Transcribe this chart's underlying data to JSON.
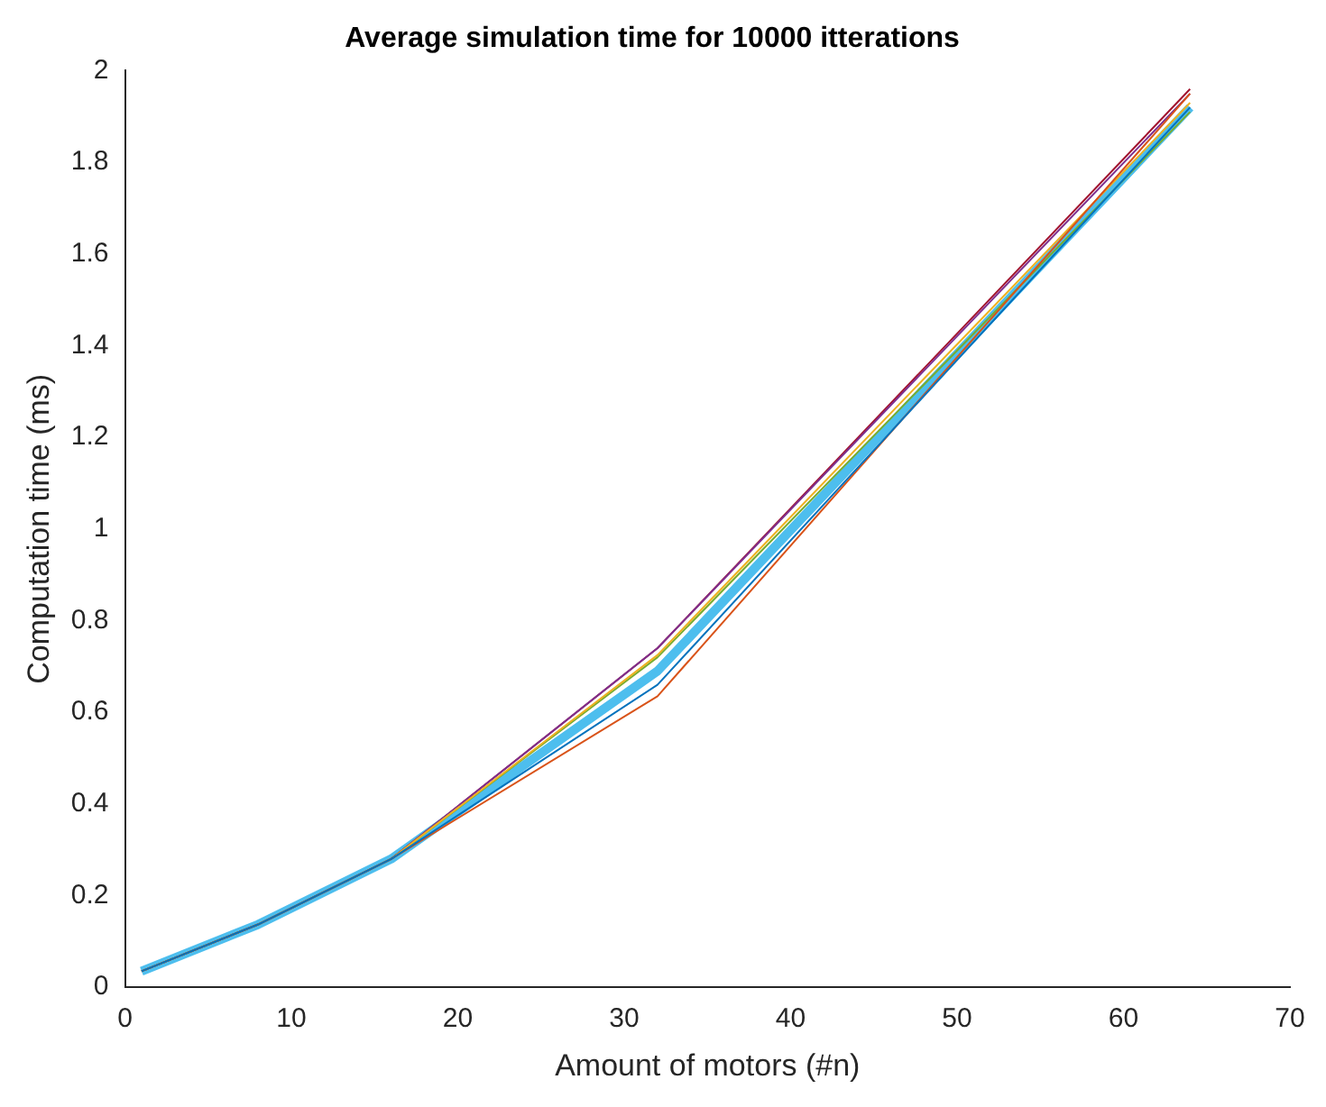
{
  "chart_data": {
    "type": "line",
    "title": "Average simulation time for 10000 itterations",
    "xlabel": "Amount of motors (#n)",
    "ylabel": "Computation time (ms)",
    "x": [
      1,
      8,
      16,
      32,
      64
    ],
    "series": [
      {
        "color": "#0072bd",
        "values": [
          0.035,
          0.137,
          0.28,
          0.66,
          1.92
        ]
      },
      {
        "color": "#d95319",
        "values": [
          0.035,
          0.137,
          0.28,
          0.635,
          1.95
        ]
      },
      {
        "color": "#edb120",
        "values": [
          0.035,
          0.137,
          0.28,
          0.725,
          1.93
        ]
      },
      {
        "color": "#7e2f8e",
        "values": [
          0.035,
          0.137,
          0.28,
          0.74,
          1.95
        ]
      },
      {
        "color": "#77ac30",
        "values": [
          0.035,
          0.137,
          0.28,
          0.72,
          1.91
        ]
      },
      {
        "color": "#a2142f",
        "values": [
          0.035,
          0.137,
          0.28,
          0.74,
          1.96
        ]
      },
      {
        "color": "#4dbeee",
        "values": [
          0.035,
          0.137,
          0.28,
          0.69,
          1.92
        ]
      }
    ],
    "xlim": [
      0,
      70
    ],
    "xticks": [
      0,
      10,
      20,
      30,
      40,
      50,
      60,
      70
    ],
    "ylim": [
      0,
      2
    ],
    "yticks": [
      0,
      0.2,
      0.4,
      0.6,
      0.8,
      1,
      1.2,
      1.4,
      1.6,
      1.8,
      2
    ],
    "grid": false,
    "legend": false,
    "marker": "none",
    "line_style": "solid"
  }
}
